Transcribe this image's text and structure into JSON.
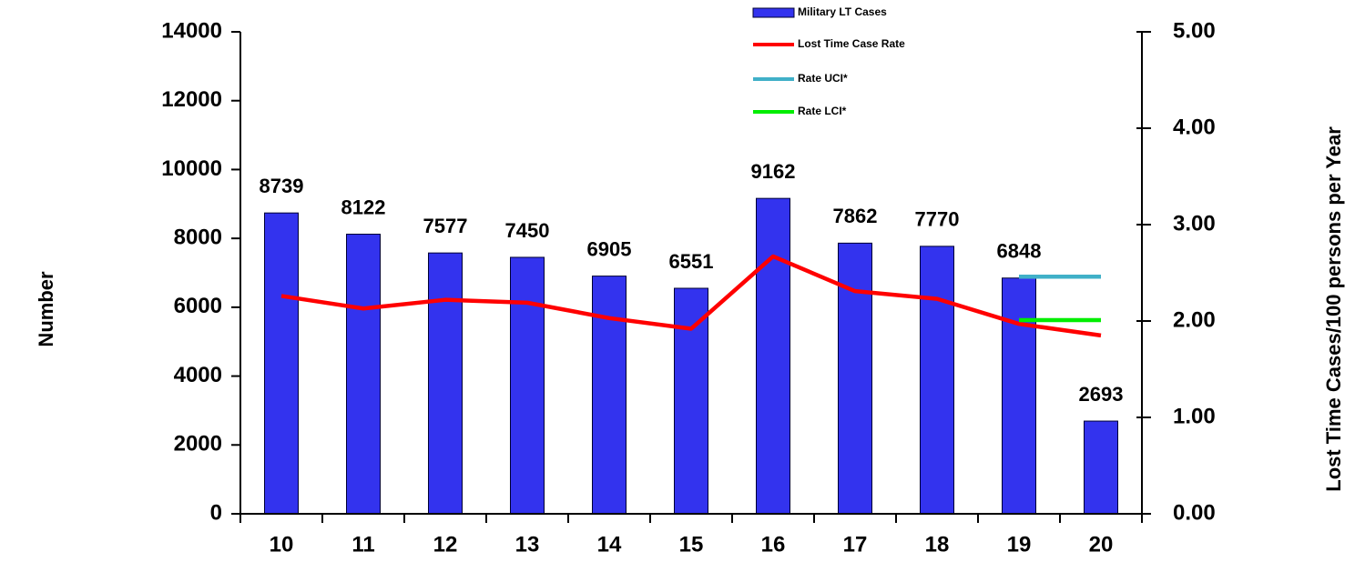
{
  "chart_data": {
    "type": "bar",
    "categories": [
      "10",
      "11",
      "12",
      "13",
      "14",
      "15",
      "16",
      "17",
      "18",
      "19",
      "20"
    ],
    "series": [
      {
        "name": "Military LT Cases",
        "type": "bar",
        "color": "#3333ee",
        "values": [
          8739,
          8122,
          7577,
          7450,
          6905,
          6551,
          9162,
          7862,
          7770,
          6848,
          2693
        ]
      },
      {
        "name": "Lost Time Case Rate",
        "type": "line",
        "axis": "y2",
        "color": "#ff0000",
        "values": [
          2.26,
          2.13,
          2.22,
          2.19,
          2.03,
          1.92,
          2.67,
          2.31,
          2.23,
          1.97,
          1.85
        ]
      },
      {
        "name": "Rate UCI*",
        "type": "line",
        "axis": "y2",
        "color": "#40b0c8",
        "values": [
          null,
          null,
          null,
          null,
          null,
          null,
          null,
          null,
          null,
          2.46,
          2.46
        ]
      },
      {
        "name": "Rate LCI*",
        "type": "line",
        "axis": "y2",
        "color": "#00ee00",
        "values": [
          null,
          null,
          null,
          null,
          null,
          null,
          null,
          null,
          null,
          2.01,
          2.01
        ]
      }
    ],
    "ylabel": "Number",
    "y2label": "Lost Time Cases/100 persons per Year",
    "ylim": [
      0,
      14000
    ],
    "yticks": [
      0,
      2000,
      4000,
      6000,
      8000,
      10000,
      12000,
      14000
    ],
    "y2lim": [
      0,
      5
    ],
    "y2ticks": [
      {
        "value": 0,
        "label": "0.00"
      },
      {
        "value": 1,
        "label": "1.00"
      },
      {
        "value": 2,
        "label": "2.00"
      },
      {
        "value": 3,
        "label": "3.00"
      },
      {
        "value": 4,
        "label": "4.00"
      },
      {
        "value": 5,
        "label": "5.00"
      }
    ],
    "legend": "top"
  }
}
